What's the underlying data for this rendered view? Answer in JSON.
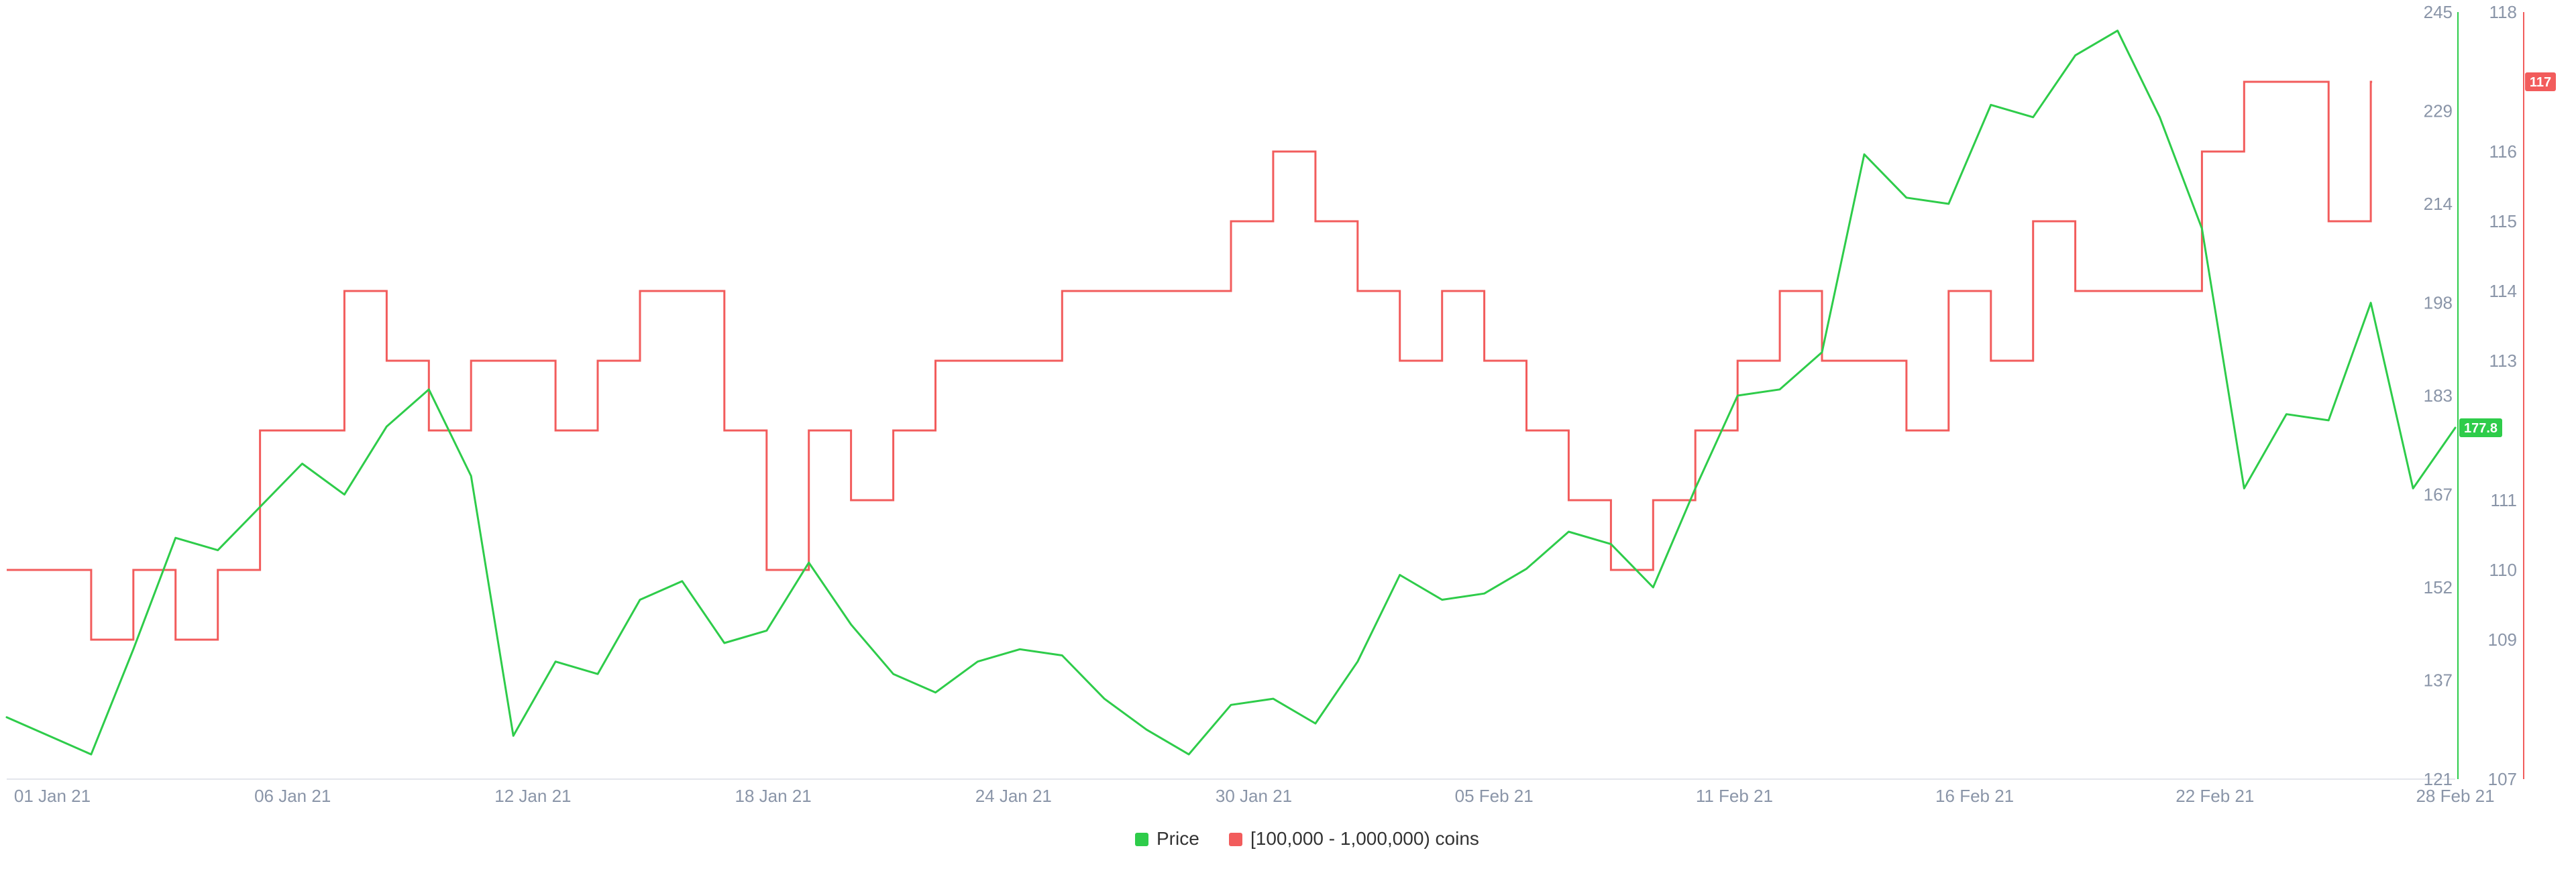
{
  "chart_data": {
    "type": "line",
    "title": "",
    "x_tick_labels": [
      "01 Jan 21",
      "06 Jan 21",
      "12 Jan 21",
      "18 Jan 21",
      "24 Jan 21",
      "30 Jan 21",
      "05 Feb 21",
      "11 Feb 21",
      "16 Feb 21",
      "22 Feb 21",
      "28 Feb 21"
    ],
    "x_range": [
      "2021-01-01",
      "2021-02-28"
    ],
    "y_left": {
      "ticks": [
        121,
        137,
        152,
        167,
        183,
        198,
        214,
        229,
        245
      ],
      "range": [
        121,
        245
      ],
      "color": "#2ecc4a"
    },
    "y_right": {
      "ticks": [
        107,
        109,
        110,
        111,
        113,
        114,
        115,
        116,
        118
      ],
      "range": [
        107,
        118
      ],
      "color": "#f25c5c"
    },
    "grid": false,
    "legend_position": "bottom",
    "series": [
      {
        "name": "Price",
        "axis": "left",
        "color": "#2ecc4a",
        "last_value_label": "177.8",
        "points": [
          [
            "2021-01-01",
            131
          ],
          [
            "2021-01-02",
            128
          ],
          [
            "2021-01-03",
            125
          ],
          [
            "2021-01-04",
            142
          ],
          [
            "2021-01-05",
            160
          ],
          [
            "2021-01-06",
            158
          ],
          [
            "2021-01-07",
            165
          ],
          [
            "2021-01-08",
            172
          ],
          [
            "2021-01-09",
            167
          ],
          [
            "2021-01-10",
            178
          ],
          [
            "2021-01-11",
            184
          ],
          [
            "2021-01-12",
            170
          ],
          [
            "2021-01-13",
            128
          ],
          [
            "2021-01-14",
            140
          ],
          [
            "2021-01-15",
            138
          ],
          [
            "2021-01-16",
            150
          ],
          [
            "2021-01-17",
            153
          ],
          [
            "2021-01-18",
            143
          ],
          [
            "2021-01-19",
            145
          ],
          [
            "2021-01-20",
            156
          ],
          [
            "2021-01-21",
            146
          ],
          [
            "2021-01-22",
            138
          ],
          [
            "2021-01-23",
            135
          ],
          [
            "2021-01-24",
            140
          ],
          [
            "2021-01-25",
            142
          ],
          [
            "2021-01-26",
            141
          ],
          [
            "2021-01-27",
            134
          ],
          [
            "2021-01-28",
            129
          ],
          [
            "2021-01-29",
            125
          ],
          [
            "2021-01-30",
            133
          ],
          [
            "2021-01-31",
            134
          ],
          [
            "2021-02-01",
            130
          ],
          [
            "2021-02-02",
            140
          ],
          [
            "2021-02-03",
            154
          ],
          [
            "2021-02-04",
            150
          ],
          [
            "2021-02-05",
            151
          ],
          [
            "2021-02-06",
            155
          ],
          [
            "2021-02-07",
            161
          ],
          [
            "2021-02-08",
            159
          ],
          [
            "2021-02-09",
            152
          ],
          [
            "2021-02-10",
            168
          ],
          [
            "2021-02-11",
            183
          ],
          [
            "2021-02-12",
            184
          ],
          [
            "2021-02-13",
            190
          ],
          [
            "2021-02-14",
            222
          ],
          [
            "2021-02-15",
            215
          ],
          [
            "2021-02-16",
            214
          ],
          [
            "2021-02-17",
            230
          ],
          [
            "2021-02-18",
            228
          ],
          [
            "2021-02-19",
            238
          ],
          [
            "2021-02-20",
            242
          ],
          [
            "2021-02-21",
            228
          ],
          [
            "2021-02-22",
            210
          ],
          [
            "2021-02-23",
            168
          ],
          [
            "2021-02-24",
            180
          ],
          [
            "2021-02-25",
            179
          ],
          [
            "2021-02-26",
            198
          ],
          [
            "2021-02-27",
            168
          ],
          [
            "2021-02-28",
            177.8
          ]
        ]
      },
      {
        "name": "[100,000  - 1,000,000) coins",
        "axis": "right",
        "color": "#f25c5c",
        "last_value_label": "117",
        "step_points": [
          [
            "2021-01-01",
            110
          ],
          [
            "2021-01-03",
            109
          ],
          [
            "2021-01-04",
            110
          ],
          [
            "2021-01-05",
            109
          ],
          [
            "2021-01-06",
            110
          ],
          [
            "2021-01-07",
            112
          ],
          [
            "2021-01-09",
            114
          ],
          [
            "2021-01-10",
            113
          ],
          [
            "2021-01-11",
            112
          ],
          [
            "2021-01-12",
            113
          ],
          [
            "2021-01-14",
            112
          ],
          [
            "2021-01-15",
            113
          ],
          [
            "2021-01-16",
            114
          ],
          [
            "2021-01-18",
            112
          ],
          [
            "2021-01-19",
            110
          ],
          [
            "2021-01-20",
            112
          ],
          [
            "2021-01-21",
            111
          ],
          [
            "2021-01-22",
            112
          ],
          [
            "2021-01-23",
            113
          ],
          [
            "2021-01-26",
            114
          ],
          [
            "2021-01-30",
            115
          ],
          [
            "2021-01-31",
            116
          ],
          [
            "2021-02-01",
            115
          ],
          [
            "2021-02-02",
            114
          ],
          [
            "2021-02-03",
            113
          ],
          [
            "2021-02-04",
            114
          ],
          [
            "2021-02-05",
            113
          ],
          [
            "2021-02-06",
            112
          ],
          [
            "2021-02-07",
            111
          ],
          [
            "2021-02-08",
            110
          ],
          [
            "2021-02-09",
            111
          ],
          [
            "2021-02-10",
            112
          ],
          [
            "2021-02-11",
            113
          ],
          [
            "2021-02-12",
            114
          ],
          [
            "2021-02-13",
            113
          ],
          [
            "2021-02-15",
            112
          ],
          [
            "2021-02-16",
            114
          ],
          [
            "2021-02-17",
            113
          ],
          [
            "2021-02-18",
            115
          ],
          [
            "2021-02-19",
            114
          ],
          [
            "2021-02-22",
            116
          ],
          [
            "2021-02-23",
            117
          ],
          [
            "2021-02-25",
            115
          ],
          [
            "2021-02-26",
            117
          ]
        ]
      }
    ]
  },
  "legend": [
    {
      "label": "Price",
      "color": "#2ecc4a"
    },
    {
      "label": "[100,000  - 1,000,000) coins",
      "color": "#f25c5c"
    }
  ]
}
